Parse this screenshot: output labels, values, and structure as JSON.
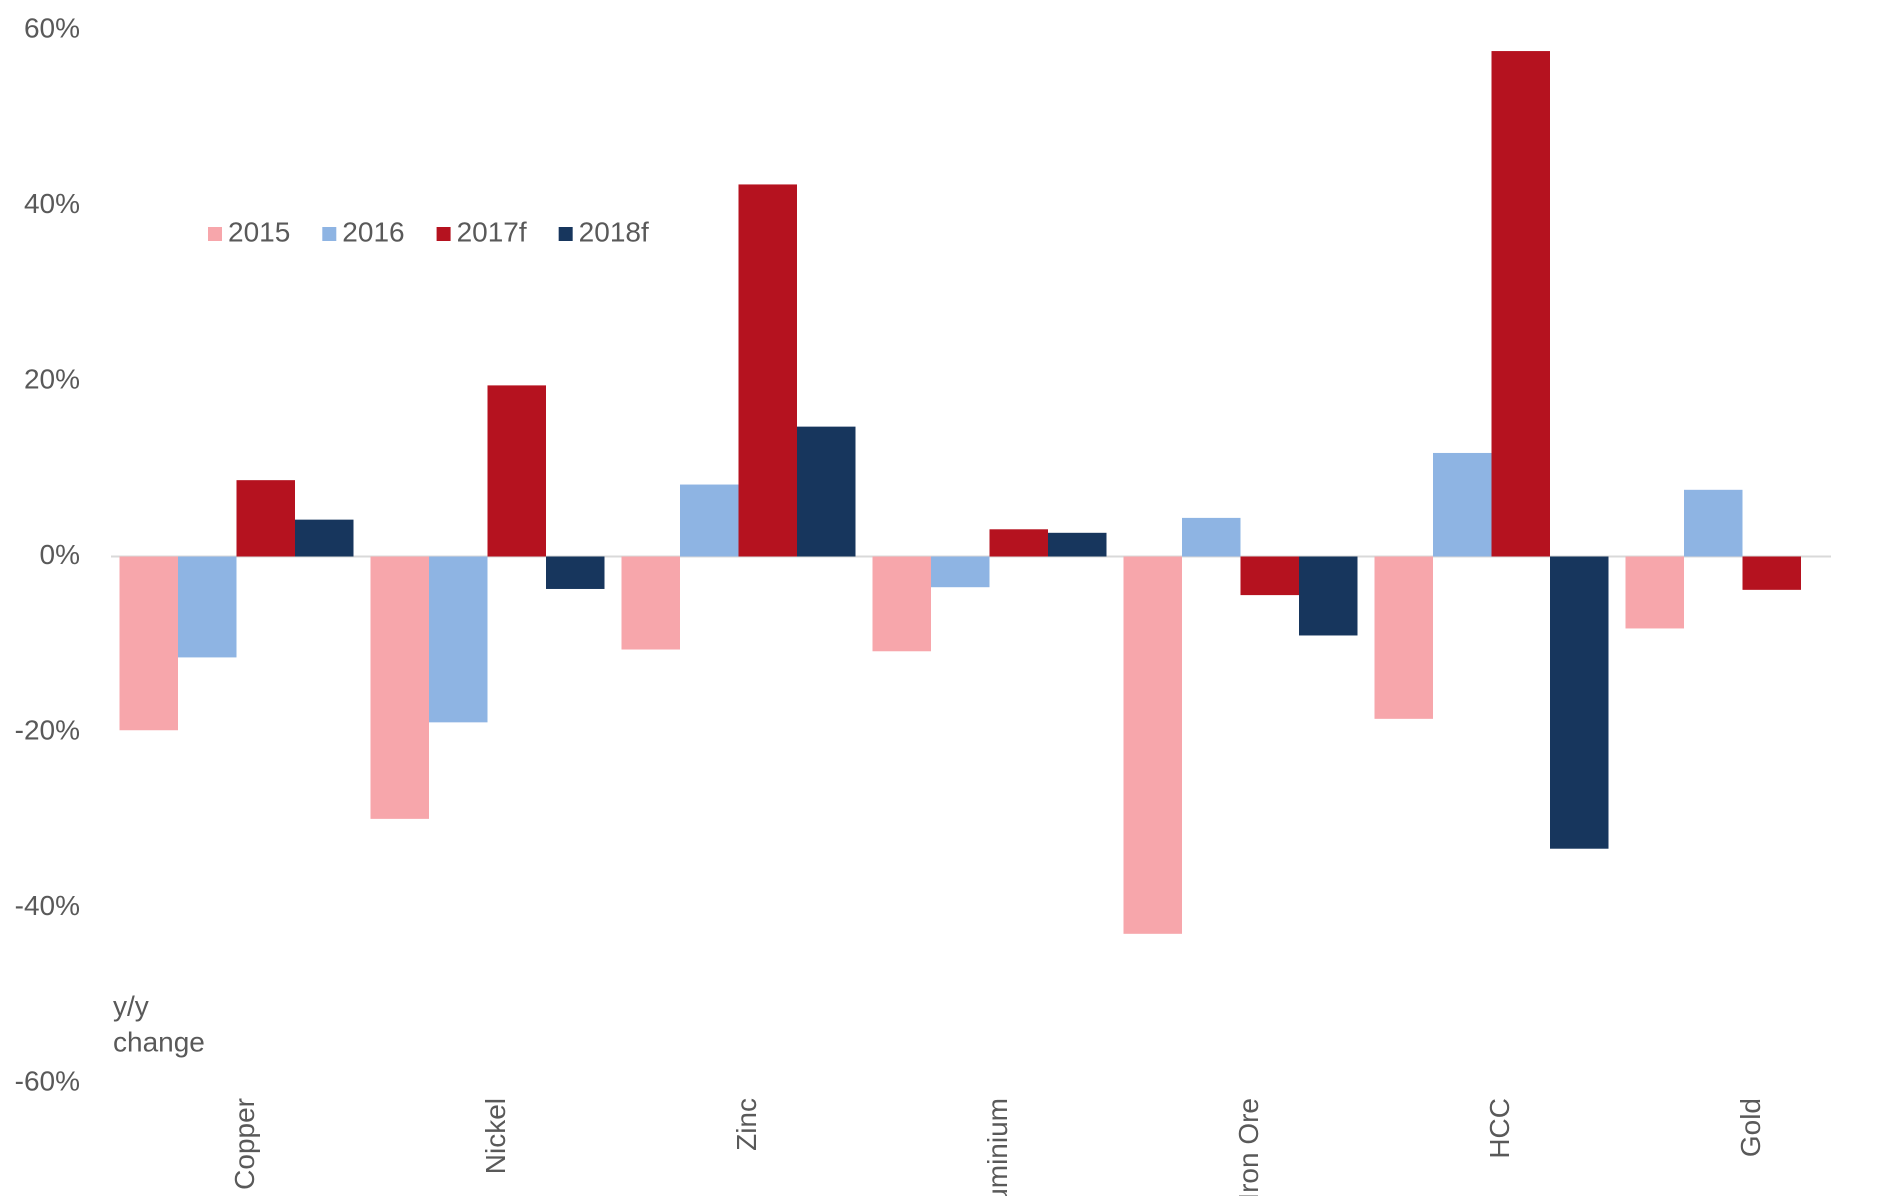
{
  "chart_data": {
    "type": "bar",
    "categories": [
      "Copper",
      "Nickel",
      "Zinc",
      "Aluminium",
      "Iron Ore",
      "HCC",
      "Gold"
    ],
    "series": [
      {
        "name": "2015",
        "color": "#f7a6ab",
        "values": [
          -19.8,
          -29.9,
          -10.6,
          -10.8,
          -43,
          -18.5,
          -8.2
        ]
      },
      {
        "name": "2016",
        "color": "#8eb4e3",
        "values": [
          -11.5,
          -18.9,
          8.2,
          -3.5,
          4.4,
          11.8,
          7.6
        ]
      },
      {
        "name": "2017f",
        "color": "#b5121f",
        "values": [
          8.7,
          19.5,
          42.4,
          3.1,
          -4.4,
          57.6,
          -3.8
        ]
      },
      {
        "name": "2018f",
        "color": "#17365d",
        "values": [
          4.2,
          -3.7,
          14.8,
          2.7,
          -9,
          -33.3,
          null
        ]
      }
    ],
    "ylim": [
      -60,
      60
    ],
    "yticks": [
      {
        "value": -60,
        "label": "-60%"
      },
      {
        "value": -40,
        "label": "-40%"
      },
      {
        "value": -20,
        "label": "-20%"
      },
      {
        "value": 0,
        "label": "0%"
      },
      {
        "value": 20,
        "label": "20%"
      },
      {
        "value": 40,
        "label": "40%"
      },
      {
        "value": 60,
        "label": "60%"
      }
    ],
    "annotation": [
      "y/y",
      "change"
    ],
    "legend": "upper left",
    "grid": false
  }
}
